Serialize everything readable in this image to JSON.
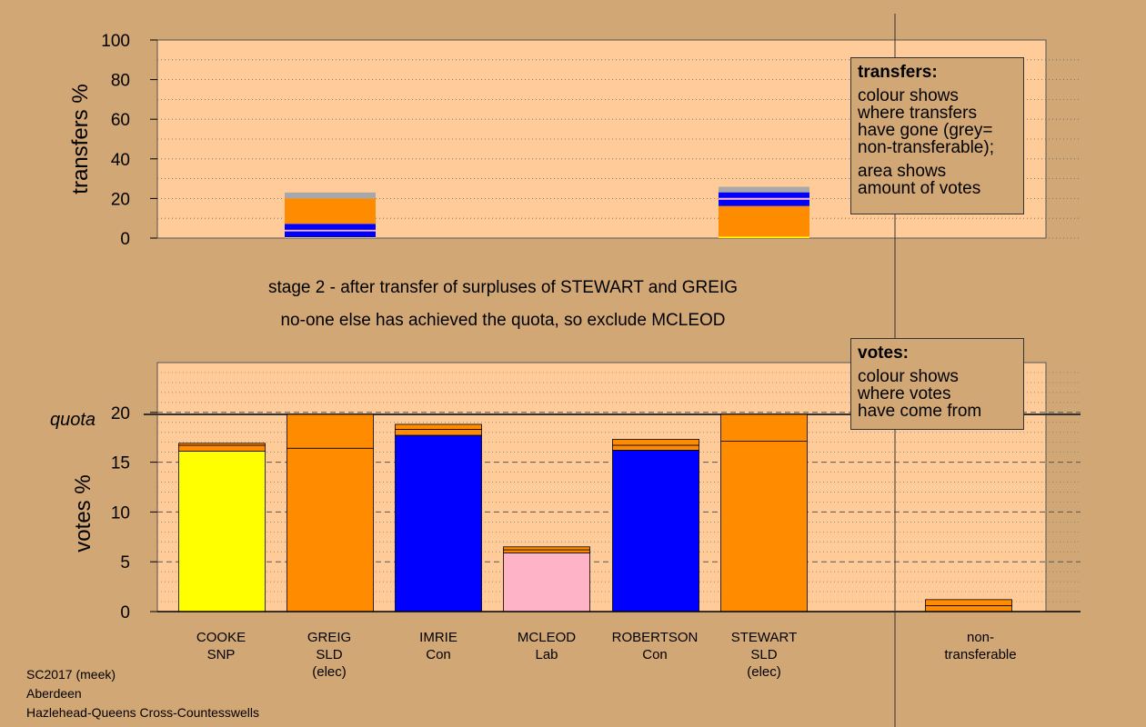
{
  "colors": {
    "background": "#d2a776",
    "panel": "#ffcc99",
    "SNP": "#ffff00",
    "SLD": "#ff8c00",
    "Con": "#0000ff",
    "Lab": "#ffb3c6",
    "nontransferable": "#a8a8a8"
  },
  "captions": {
    "line1": "stage 2 - after transfer of surpluses of STEWART and GREIG",
    "line2": "no-one else has achieved the quota, so exclude MCLEOD"
  },
  "legend_transfers": {
    "title": "transfers:",
    "line1": "colour shows",
    "line2": "where transfers",
    "line3": "have gone (grey=",
    "line4": "non-transferable);",
    "line5": "area shows",
    "line6": "amount of votes"
  },
  "legend_votes": {
    "title": "votes:",
    "line1": "colour shows",
    "line2": "where votes",
    "line3": "have come from"
  },
  "footer": {
    "line1": "SC2017 (meek)",
    "line2": "Aberdeen",
    "line3": "Hazlehead-Queens Cross-Countesswells"
  },
  "chart_data": [
    {
      "type": "bar",
      "panel": "transfers",
      "ylabel": "transfers %",
      "ylim": [
        0,
        100
      ],
      "yticks": [
        0,
        20,
        40,
        60,
        80,
        100
      ],
      "grid": "dotted",
      "categories": [
        "COOKE",
        "GREIG",
        "IMRIE",
        "MCLEOD",
        "ROBERTSON",
        "STEWART"
      ],
      "stacks": [
        [],
        [
          {
            "to": "COOKE",
            "party": "SNP",
            "value": 0.4
          },
          {
            "to": "IMRIE",
            "party": "Con",
            "value": 3.0
          },
          {
            "to": "MCLEOD",
            "party": "Lab",
            "value": 0.8
          },
          {
            "to": "ROBERTSON",
            "party": "Con",
            "value": 3.0
          },
          {
            "to": "STEWART",
            "party": "SLD",
            "value": 12.8
          },
          {
            "to": "non-transferable",
            "party": "nontransferable",
            "value": 3.0
          }
        ],
        [],
        [],
        [],
        [
          {
            "to": "COOKE",
            "party": "SNP",
            "value": 0.7
          },
          {
            "to": "GREIG",
            "party": "SLD",
            "value": 15.5
          },
          {
            "to": "IMRIE",
            "party": "Con",
            "value": 3.2
          },
          {
            "to": "MCLEOD",
            "party": "Lab",
            "value": 0.9
          },
          {
            "to": "ROBERTSON",
            "party": "Con",
            "value": 2.8
          },
          {
            "to": "non-transferable",
            "party": "nontransferable",
            "value": 2.8
          }
        ]
      ]
    },
    {
      "type": "bar",
      "panel": "votes",
      "ylabel": "votes %",
      "ylim": [
        0,
        25
      ],
      "yticks": [
        0,
        5,
        10,
        15,
        20
      ],
      "quota": 19.8,
      "quota_label": "quota",
      "grid": "dashed",
      "candidates": [
        {
          "name": "COOKE",
          "party": "SNP",
          "note": "",
          "segments": [
            {
              "from": "SNP",
              "value": 16.1
            },
            {
              "from": "SLD",
              "value": 0.6
            },
            {
              "from": "SLD",
              "value": 0.2
            }
          ]
        },
        {
          "name": "GREIG",
          "party": "SLD",
          "note": "(elec)",
          "segments": [
            {
              "from": "SLD",
              "value": 16.4
            },
            {
              "from": "SLD",
              "value": 3.4
            }
          ]
        },
        {
          "name": "IMRIE",
          "party": "Con",
          "note": "",
          "segments": [
            {
              "from": "Con",
              "value": 17.7
            },
            {
              "from": "SLD",
              "value": 0.6
            },
            {
              "from": "SLD",
              "value": 0.5
            }
          ]
        },
        {
          "name": "MCLEOD",
          "party": "Lab",
          "note": "",
          "segments": [
            {
              "from": "Lab",
              "value": 5.9
            },
            {
              "from": "SLD",
              "value": 0.3
            },
            {
              "from": "SLD",
              "value": 0.3
            }
          ]
        },
        {
          "name": "ROBERTSON",
          "party": "Con",
          "note": "",
          "segments": [
            {
              "from": "Con",
              "value": 16.2
            },
            {
              "from": "SLD",
              "value": 0.5
            },
            {
              "from": "SLD",
              "value": 0.6
            }
          ]
        },
        {
          "name": "STEWART",
          "party": "SLD",
          "note": "(elec)",
          "segments": [
            {
              "from": "SLD",
              "value": 17.1
            },
            {
              "from": "SLD",
              "value": 2.7
            }
          ]
        }
      ],
      "nontransferable": {
        "label_line1": "non-",
        "label_line2": "transferable",
        "segments": [
          {
            "from": "SLD",
            "value": 0.6
          },
          {
            "from": "SLD",
            "value": 0.6
          }
        ]
      }
    }
  ]
}
